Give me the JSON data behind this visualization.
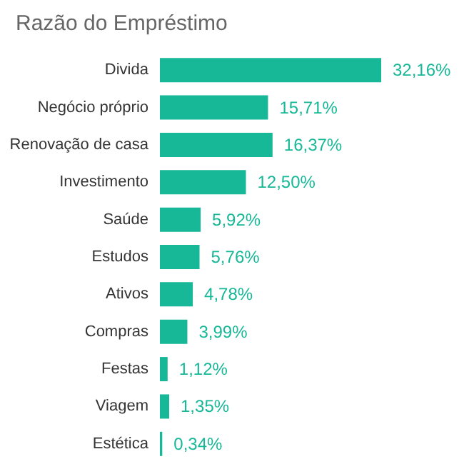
{
  "chart_data": {
    "type": "bar",
    "title": "Razão do Empréstimo",
    "orientation": "horizontal",
    "color": "#17b897",
    "categories": [
      "Divida",
      "Negócio próprio",
      "Renovação de casa",
      "Investimento",
      "Saúde",
      "Estudos",
      "Ativos",
      "Compras",
      "Festas",
      "Viagem",
      "Estética"
    ],
    "values": [
      32.16,
      15.71,
      16.37,
      12.5,
      5.92,
      5.76,
      4.78,
      3.99,
      1.12,
      1.35,
      0.34
    ],
    "value_labels": [
      "32,16%",
      "15,71%",
      "16,37%",
      "12,50%",
      "5,92%",
      "5,76%",
      "4,78%",
      "3,99%",
      "1,12%",
      "1,35%",
      "0,34%"
    ]
  }
}
